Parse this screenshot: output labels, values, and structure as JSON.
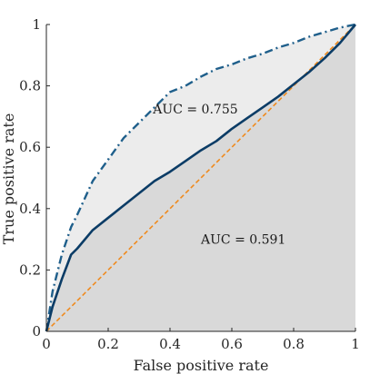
{
  "chart_data": {
    "type": "line",
    "xlabel": "False positive rate",
    "ylabel": "True positive rate",
    "xlim": [
      0,
      1
    ],
    "ylim": [
      0,
      1
    ],
    "xticks": [
      "0",
      "0.2",
      "0.4",
      "0.6",
      "0.8",
      "1"
    ],
    "yticks": [
      "0",
      "0.2",
      "0.4",
      "0.6",
      "0.8",
      "1"
    ],
    "grid": false,
    "legend": "none",
    "series": [
      {
        "style": "solid",
        "color": "#0b3c66",
        "fill_color": "#d9d9d9",
        "x": [
          0,
          0.02,
          0.05,
          0.08,
          0.1,
          0.15,
          0.2,
          0.25,
          0.3,
          0.35,
          0.4,
          0.45,
          0.5,
          0.55,
          0.6,
          0.65,
          0.7,
          0.75,
          0.8,
          0.85,
          0.9,
          0.95,
          1.0
        ],
        "y": [
          0,
          0.08,
          0.17,
          0.25,
          0.27,
          0.33,
          0.37,
          0.41,
          0.45,
          0.49,
          0.52,
          0.555,
          0.59,
          0.62,
          0.66,
          0.695,
          0.73,
          0.765,
          0.805,
          0.845,
          0.89,
          0.94,
          1.0
        ]
      },
      {
        "style": "dash-dot",
        "color": "#1f5f8b",
        "fill_color": "#ececec",
        "x": [
          0,
          0.02,
          0.05,
          0.08,
          0.1,
          0.15,
          0.2,
          0.25,
          0.3,
          0.35,
          0.4,
          0.45,
          0.5,
          0.55,
          0.6,
          0.65,
          0.7,
          0.75,
          0.8,
          0.85,
          0.9,
          0.95,
          1.0
        ],
        "y": [
          0,
          0.13,
          0.25,
          0.34,
          0.38,
          0.49,
          0.56,
          0.63,
          0.68,
          0.73,
          0.78,
          0.8,
          0.83,
          0.855,
          0.87,
          0.89,
          0.905,
          0.925,
          0.94,
          0.96,
          0.975,
          0.99,
          1.0
        ]
      },
      {
        "style": "dotted",
        "color": "#ef8a1e",
        "x": [
          0,
          1
        ],
        "y": [
          0,
          1
        ]
      }
    ],
    "annotations": [
      {
        "text": "AUC = 0.755",
        "x": 0.345,
        "y": 0.725
      },
      {
        "text": "AUC = 0.591",
        "x": 0.5,
        "y": 0.3
      }
    ]
  }
}
